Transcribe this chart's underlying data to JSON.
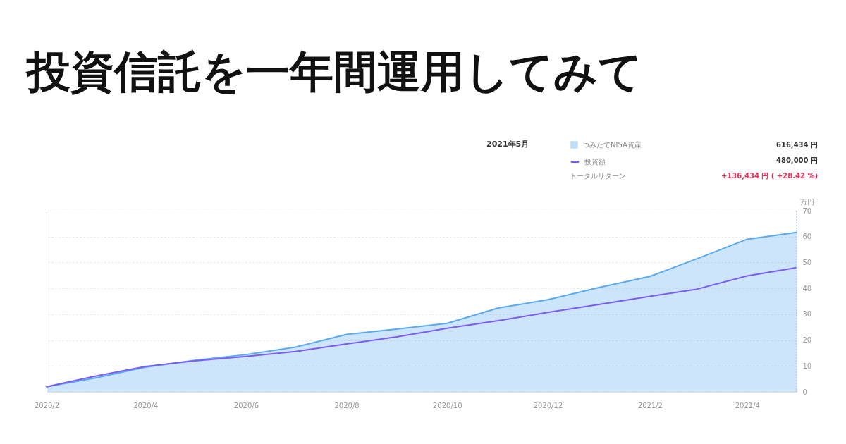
{
  "chart_data": {
    "type": "line",
    "title": "投資信託を一年間運用してみて",
    "ylabel": "万円",
    "legend_title": "2021年5月",
    "x": [
      "2020-02",
      "2020-03",
      "2020-04",
      "2020-05",
      "2020-06",
      "2020-07",
      "2020-08",
      "2020-09",
      "2020-10",
      "2020-11",
      "2020-12",
      "2021-01",
      "2021-02",
      "2021-03",
      "2021-04",
      "2021-05"
    ],
    "series": [
      {
        "name": "つみたてNISA資産",
        "type": "area",
        "color": "#5aaaf0",
        "values": [
          2.0,
          5.3,
          9.5,
          12.2,
          14.4,
          17.3,
          22.2,
          24.3,
          26.5,
          32.4,
          35.6,
          40.3,
          44.6,
          51.3,
          59.0,
          61.6
        ]
      },
      {
        "name": "投資額",
        "color": "#7b5cf5",
        "values": [
          2.0,
          6.0,
          9.8,
          12.0,
          13.7,
          15.6,
          18.5,
          21.3,
          24.6,
          27.5,
          30.7,
          33.8,
          36.9,
          39.6,
          44.8,
          48.0
        ]
      }
    ],
    "xlim": [
      "2020-02",
      "2021-05"
    ],
    "xticks": [
      {
        "value": "2020-02",
        "label": "2020/2"
      },
      {
        "value": "2020-04",
        "label": "2020/4"
      },
      {
        "value": "2020-06",
        "label": "2020/6"
      },
      {
        "value": "2020-08",
        "label": "2020/8"
      },
      {
        "value": "2020-10",
        "label": "2020/10"
      },
      {
        "value": "2020-12",
        "label": "2020/12"
      },
      {
        "value": "2021-02",
        "label": "2021/2"
      },
      {
        "value": "2021-04",
        "label": "2021/4"
      }
    ],
    "ylim": [
      0,
      70
    ],
    "yticks": [
      0,
      10,
      20,
      30,
      40,
      50,
      60,
      70
    ],
    "grid": "y",
    "legend": "top right",
    "ref_lines": [
      {
        "axis": "x",
        "value": "2021-05",
        "color": "#a9c4f5",
        "line_style": "dotted"
      }
    ],
    "annotations": [
      "616,434 円",
      "480,000 円",
      "トータルリターン",
      "+136,434 円 ( +28.42 %)"
    ]
  }
}
